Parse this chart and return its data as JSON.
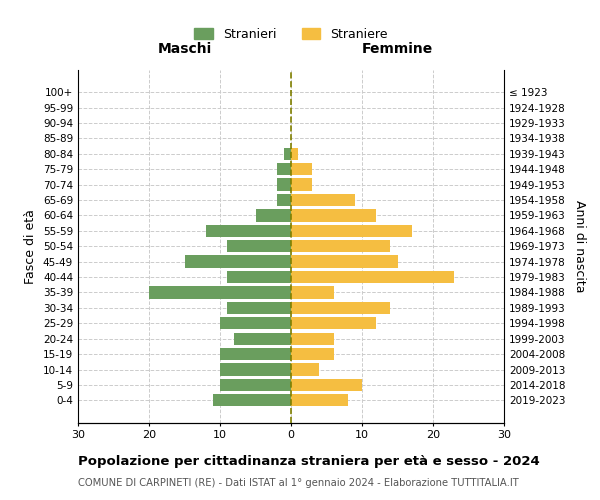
{
  "age_groups": [
    "0-4",
    "5-9",
    "10-14",
    "15-19",
    "20-24",
    "25-29",
    "30-34",
    "35-39",
    "40-44",
    "45-49",
    "50-54",
    "55-59",
    "60-64",
    "65-69",
    "70-74",
    "75-79",
    "80-84",
    "85-89",
    "90-94",
    "95-99",
    "100+"
  ],
  "birth_years": [
    "2019-2023",
    "2014-2018",
    "2009-2013",
    "2004-2008",
    "1999-2003",
    "1994-1998",
    "1989-1993",
    "1984-1988",
    "1979-1983",
    "1974-1978",
    "1969-1973",
    "1964-1968",
    "1959-1963",
    "1954-1958",
    "1949-1953",
    "1944-1948",
    "1939-1943",
    "1934-1938",
    "1929-1933",
    "1924-1928",
    "≤ 1923"
  ],
  "males": [
    11,
    10,
    10,
    10,
    8,
    10,
    9,
    20,
    9,
    15,
    9,
    12,
    5,
    2,
    2,
    2,
    1,
    0,
    0,
    0,
    0
  ],
  "females": [
    8,
    10,
    4,
    6,
    6,
    12,
    14,
    6,
    23,
    15,
    14,
    17,
    12,
    9,
    3,
    3,
    1,
    0,
    0,
    0,
    0
  ],
  "male_color": "#6a9e5e",
  "female_color": "#f5be41",
  "background_color": "#ffffff",
  "grid_color": "#cccccc",
  "xlim": 30,
  "title": "Popolazione per cittadinanza straniera per età e sesso - 2024",
  "subtitle": "COMUNE DI CARPINETI (RE) - Dati ISTAT al 1° gennaio 2024 - Elaborazione TUTTITALIA.IT",
  "xlabel_left": "Maschi",
  "xlabel_right": "Femmine",
  "ylabel_left": "Fasce di età",
  "ylabel_right": "Anni di nascita",
  "legend_male": "Stranieri",
  "legend_female": "Straniere",
  "bar_height": 0.8
}
